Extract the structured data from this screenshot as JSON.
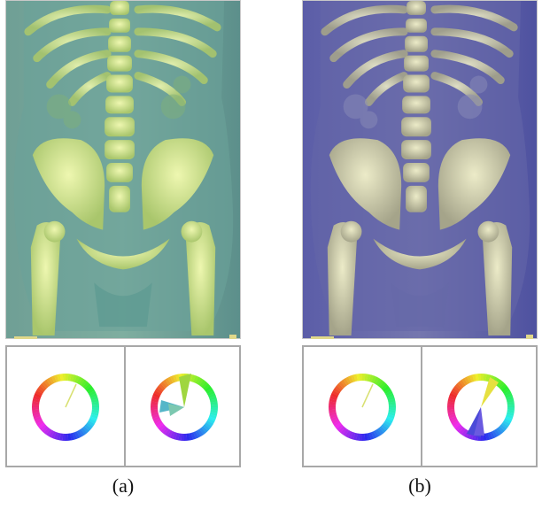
{
  "figure": {
    "panels": [
      {
        "id": "a",
        "caption": "(a)",
        "tint": "#5f9c8c",
        "bone": "#d8ec90",
        "skin": "#4f8c92",
        "wheel_left": "thin-line",
        "wheel_right": "wedge-green"
      },
      {
        "id": "b",
        "caption": "(b)",
        "tint": "#5c5ea6",
        "bone": "#d8d8b0",
        "skin": "#55559a",
        "wheel_left": "thin-line",
        "wheel_right": "wedge-blue"
      }
    ]
  },
  "icons": [
    "color-wheel-icon"
  ]
}
